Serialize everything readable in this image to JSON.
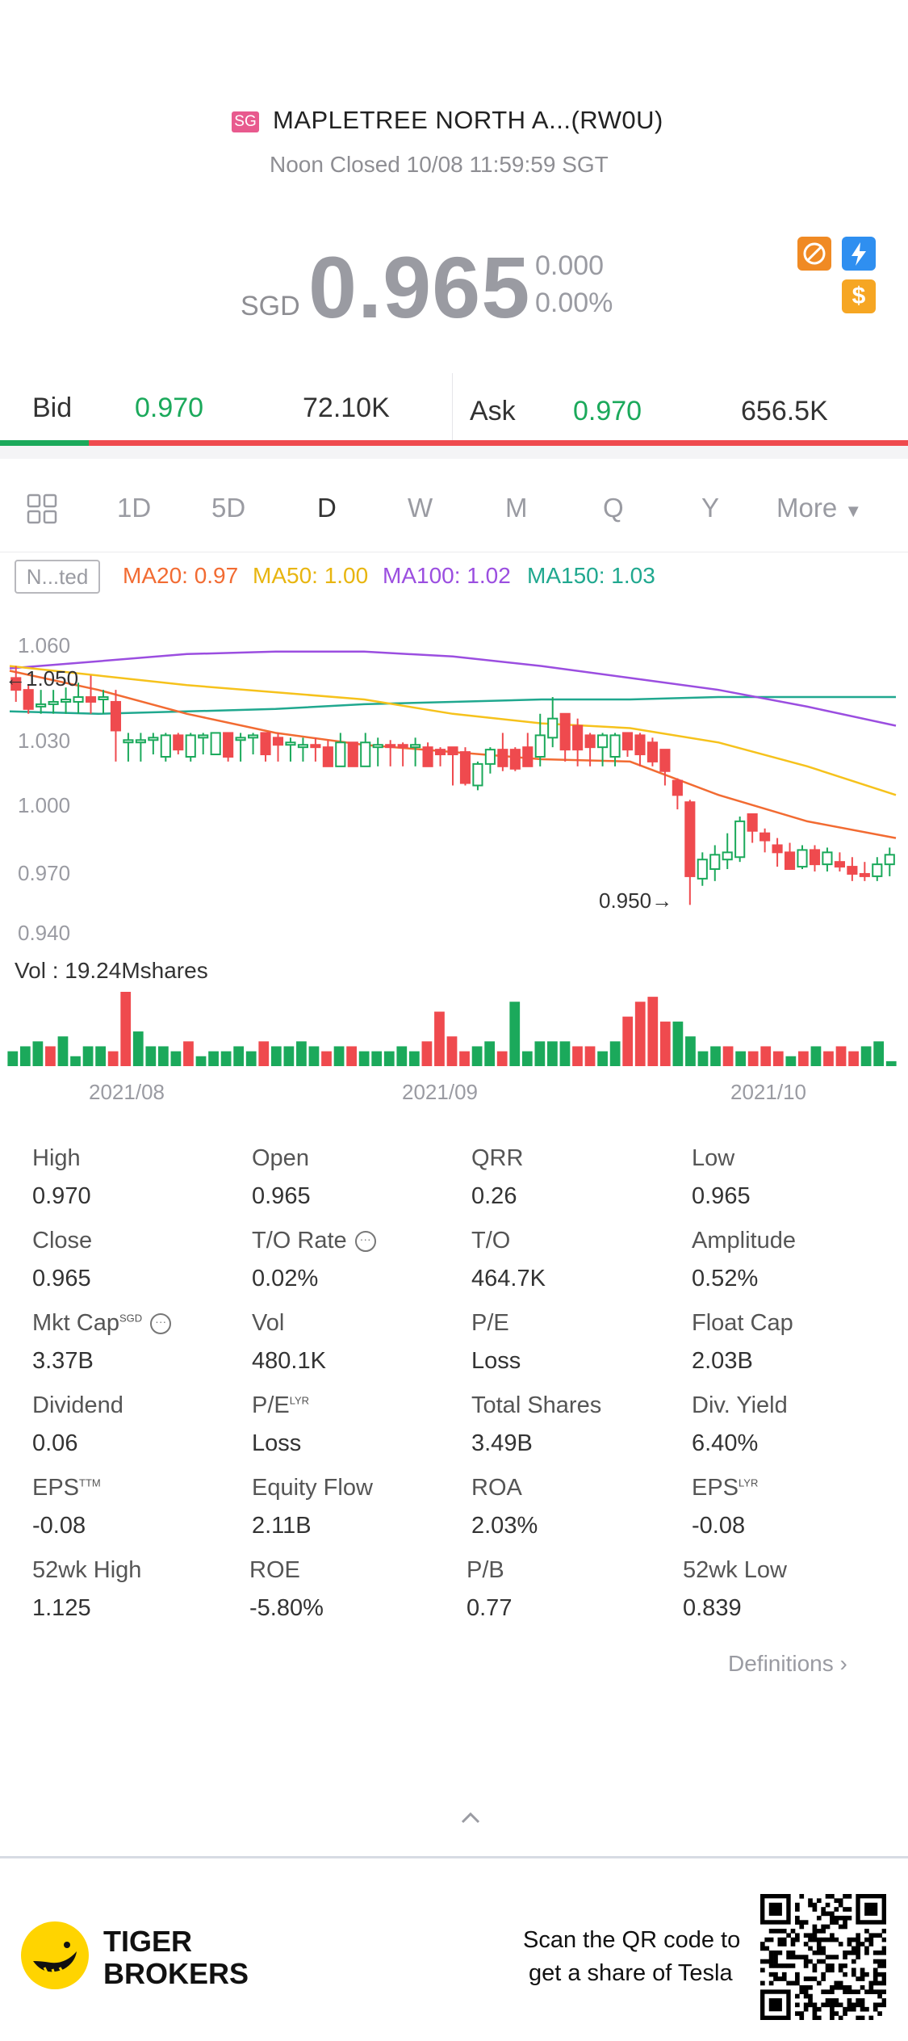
{
  "header": {
    "market_badge": "SG",
    "title": "MAPLETREE NORTH A...(RW0U)",
    "status": "Noon Closed 10/08 11:59:59 SGT",
    "currency": "SGD",
    "price": "0.965",
    "change": "0.000",
    "change_pct": "0.00%",
    "icons": [
      "no-shorting-icon",
      "flash-icon",
      "dividend-dollar-icon"
    ],
    "icon_colors": {
      "orange": "#f08a24",
      "blue": "#2f8ff0",
      "gold": "#f6a623"
    }
  },
  "quote": {
    "bid_label": "Bid",
    "bid_price": "0.970",
    "bid_size": "72.10K",
    "ask_label": "Ask",
    "ask_price": "0.970",
    "ask_size": "656.5K",
    "bid_share": 0.098
  },
  "periods": {
    "grid_icon": "grid-layout-icon",
    "items": [
      "1D",
      "5D",
      "D",
      "W",
      "M",
      "Q",
      "Y"
    ],
    "active": "D",
    "more": "More"
  },
  "indicators": {
    "tag": "N...ted",
    "ma20": "MA20: 0.97",
    "ma50": "MA50: 1.00",
    "ma100": "MA100: 1.02",
    "ma150": "MA150: 1.03",
    "colors": {
      "ma20": "#f26b32",
      "ma50": "#f6c21c",
      "ma100": "#9b4ee0",
      "ma150": "#20a88f"
    }
  },
  "chart_data": [
    {
      "type": "candlestick",
      "y_ticks": [
        "1.060",
        "1.030",
        "1.000",
        "0.970",
        "0.940"
      ],
      "ylim": [
        0.94,
        1.06
      ],
      "high_marker": "1.050",
      "low_marker": "0.950",
      "up_color": "#1ba95b",
      "down_color": "#ef4a4e",
      "candles": [
        [
          1.045,
          1.04,
          1.05,
          1.035
        ],
        [
          1.04,
          1.032,
          1.042,
          1.03
        ],
        [
          1.033,
          1.034,
          1.04,
          1.03
        ],
        [
          1.034,
          1.035,
          1.04,
          1.03
        ],
        [
          1.035,
          1.036,
          1.041,
          1.03
        ],
        [
          1.035,
          1.037,
          1.043,
          1.03
        ],
        [
          1.037,
          1.035,
          1.046,
          1.03
        ],
        [
          1.036,
          1.037,
          1.04,
          1.03
        ],
        [
          1.035,
          1.023,
          1.04,
          1.01
        ],
        [
          1.018,
          1.019,
          1.022,
          1.01
        ],
        [
          1.018,
          1.019,
          1.022,
          1.01
        ],
        [
          1.019,
          1.02,
          1.022,
          1.013
        ],
        [
          1.012,
          1.021,
          1.022,
          1.01
        ],
        [
          1.021,
          1.015,
          1.022,
          1.013
        ],
        [
          1.012,
          1.021,
          1.022,
          1.01
        ],
        [
          1.02,
          1.021,
          1.022,
          1.013
        ],
        [
          1.013,
          1.022,
          1.022,
          1.013
        ],
        [
          1.022,
          1.012,
          1.022,
          1.01
        ],
        [
          1.019,
          1.02,
          1.022,
          1.01
        ],
        [
          1.02,
          1.021,
          1.022,
          1.013
        ],
        [
          1.022,
          1.013,
          1.022,
          1.01
        ],
        [
          1.02,
          1.017,
          1.022,
          1.01
        ],
        [
          1.017,
          1.018,
          1.02,
          1.01
        ],
        [
          1.016,
          1.017,
          1.02,
          1.01
        ],
        [
          1.017,
          1.016,
          1.02,
          1.01
        ],
        [
          1.016,
          1.008,
          1.019,
          1.008
        ],
        [
          1.008,
          1.018,
          1.022,
          1.008
        ],
        [
          1.018,
          1.008,
          1.018,
          1.008
        ],
        [
          1.008,
          1.018,
          1.022,
          1.008
        ],
        [
          1.016,
          1.017,
          1.02,
          1.008
        ],
        [
          1.017,
          1.016,
          1.019,
          1.008
        ],
        [
          1.017,
          1.016,
          1.018,
          1.008
        ],
        [
          1.016,
          1.017,
          1.02,
          1.008
        ],
        [
          1.016,
          1.008,
          1.018,
          1.008
        ],
        [
          1.015,
          1.013,
          1.016,
          1.008
        ],
        [
          1.016,
          1.013,
          1.016,
          1.0
        ],
        [
          1.014,
          1.001,
          1.016,
          1.0
        ],
        [
          1.0,
          1.009,
          1.01,
          0.998
        ],
        [
          1.009,
          1.015,
          1.016,
          1.005
        ],
        [
          1.015,
          1.008,
          1.022,
          1.006
        ],
        [
          1.015,
          1.007,
          1.016,
          1.006
        ],
        [
          1.016,
          1.008,
          1.022,
          1.008
        ],
        [
          1.012,
          1.021,
          1.03,
          1.008
        ],
        [
          1.02,
          1.028,
          1.037,
          1.016
        ],
        [
          1.03,
          1.015,
          1.03,
          1.01
        ],
        [
          1.025,
          1.015,
          1.028,
          1.008
        ],
        [
          1.021,
          1.016,
          1.022,
          1.008
        ],
        [
          1.016,
          1.021,
          1.022,
          1.008
        ],
        [
          1.012,
          1.021,
          1.022,
          1.008
        ],
        [
          1.022,
          1.015,
          1.022,
          1.012
        ],
        [
          1.021,
          1.013,
          1.022,
          1.008
        ],
        [
          1.018,
          1.01,
          1.02,
          1.008
        ],
        [
          1.015,
          1.006,
          1.015,
          1.0
        ],
        [
          1.002,
          0.996,
          1.003,
          0.99
        ],
        [
          0.993,
          0.962,
          0.994,
          0.95
        ],
        [
          0.961,
          0.969,
          0.972,
          0.958
        ],
        [
          0.965,
          0.971,
          0.975,
          0.96
        ],
        [
          0.969,
          0.972,
          0.98,
          0.965
        ],
        [
          0.97,
          0.985,
          0.987,
          0.968
        ],
        [
          0.988,
          0.981,
          0.988,
          0.976
        ],
        [
          0.98,
          0.977,
          0.982,
          0.972
        ],
        [
          0.975,
          0.972,
          0.978,
          0.966
        ],
        [
          0.972,
          0.965,
          0.976,
          0.965
        ],
        [
          0.966,
          0.973,
          0.975,
          0.965
        ],
        [
          0.973,
          0.967,
          0.975,
          0.964
        ],
        [
          0.967,
          0.972,
          0.974,
          0.964
        ],
        [
          0.968,
          0.966,
          0.972,
          0.964
        ],
        [
          0.966,
          0.963,
          0.97,
          0.96
        ],
        [
          0.963,
          0.962,
          0.968,
          0.96
        ],
        [
          0.962,
          0.967,
          0.97,
          0.96
        ],
        [
          0.967,
          0.971,
          0.974,
          0.962
        ]
      ],
      "ma_lines": {
        "ma150": [
          1.031,
          1.03,
          1.031,
          1.032,
          1.034,
          1.035,
          1.036,
          1.036,
          1.037,
          1.037,
          1.037
        ],
        "ma100": [
          1.049,
          1.052,
          1.055,
          1.056,
          1.056,
          1.054,
          1.05,
          1.045,
          1.04,
          1.033,
          1.025
        ],
        "ma50": [
          1.05,
          1.046,
          1.042,
          1.039,
          1.036,
          1.03,
          1.026,
          1.024,
          1.018,
          1.008,
          0.996
        ],
        "ma20": [
          1.048,
          1.04,
          1.03,
          1.022,
          1.017,
          1.014,
          1.011,
          1.01,
          0.996,
          0.985,
          0.978
        ]
      }
    },
    {
      "type": "bar",
      "title": "Vol  : 19.24Mshares",
      "x_ticks": [
        "2021/08",
        "2021/09",
        "2021/10"
      ],
      "values": [
        3,
        4,
        5,
        4,
        6,
        2,
        4,
        4,
        3,
        15,
        7,
        4,
        4,
        3,
        5,
        2,
        3,
        3,
        4,
        3,
        5,
        4,
        4,
        5,
        4,
        3,
        4,
        4,
        3,
        3,
        3,
        4,
        3,
        5,
        11,
        6,
        3,
        4,
        5,
        3,
        13,
        3,
        5,
        5,
        5,
        4,
        4,
        3,
        5,
        10,
        13,
        14,
        9,
        9,
        6,
        3,
        4,
        4,
        3,
        3,
        4,
        3,
        2,
        3,
        4,
        3,
        4,
        3,
        4,
        5,
        1
      ],
      "up": [
        1,
        1,
        1,
        0,
        1,
        1,
        1,
        1,
        0,
        0,
        1,
        1,
        1,
        1,
        0,
        1,
        1,
        1,
        1,
        1,
        0,
        1,
        1,
        1,
        1,
        0,
        1,
        0,
        1,
        1,
        1,
        1,
        1,
        0,
        0,
        0,
        0,
        1,
        1,
        0,
        1,
        1,
        1,
        1,
        1,
        0,
        0,
        1,
        1,
        0,
        0,
        0,
        0,
        1,
        1,
        1,
        1,
        0,
        1,
        0,
        0,
        0,
        1,
        0,
        1,
        0,
        0,
        0,
        1,
        1,
        1
      ]
    }
  ],
  "stats": [
    [
      {
        "label": "High",
        "value": "0.970"
      },
      {
        "label": "Open",
        "value": "0.965"
      },
      {
        "label": "QRR",
        "value": "0.26"
      },
      {
        "label": "Low",
        "value": "0.965"
      }
    ],
    [
      {
        "label": "Close",
        "value": "0.965"
      },
      {
        "label": "T/O Rate",
        "value": "0.02%",
        "info": true
      },
      {
        "label": "T/O",
        "value": "464.7K"
      },
      {
        "label": "Amplitude",
        "value": "0.52%"
      }
    ],
    [
      {
        "label": "Mkt Cap",
        "sup": "SGD",
        "value": "3.37B",
        "info": true
      },
      {
        "label": "Vol",
        "value": "480.1K"
      },
      {
        "label": "P/E",
        "value": "Loss"
      },
      {
        "label": "Float Cap",
        "value": "2.03B"
      }
    ],
    [
      {
        "label": "Dividend",
        "value": "0.06"
      },
      {
        "label": "P/E",
        "sup": "LYR",
        "value": "Loss"
      },
      {
        "label": "Total Shares",
        "value": "3.49B"
      },
      {
        "label": "Div. Yield",
        "value": "6.40%"
      }
    ],
    [
      {
        "label": "EPS",
        "sup": "TTM",
        "value": "-0.08"
      },
      {
        "label": "Equity Flow",
        "value": "2.11B"
      },
      {
        "label": "ROA",
        "value": "2.03%"
      },
      {
        "label": "EPS",
        "sup": "LYR",
        "value": "-0.08"
      }
    ],
    [
      {
        "label": "52wk High",
        "value": "1.125"
      },
      {
        "label": "ROE",
        "value": "-5.80%"
      },
      {
        "label": "P/B",
        "value": "0.77"
      },
      {
        "label": "52wk Low",
        "value": "0.839"
      }
    ]
  ],
  "definitions_label": "Definitions",
  "footer": {
    "brand_line1": "TIGER",
    "brand_line2": "BROKERS",
    "promo_line1": "Scan the QR code to",
    "promo_line2": "get a share of Tesla"
  }
}
